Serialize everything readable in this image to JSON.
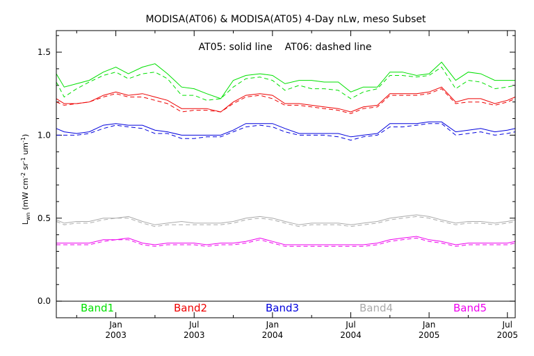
{
  "chart_data": {
    "type": "line",
    "title": "MODISA(AT06) & MODISA(AT05) 4-Day nLw, meso Subset",
    "annotation": "AT05: solid line    AT06: dashed line",
    "ylabel": {
      "base": "L",
      "sub": "wn",
      "units_open": "  (mW cm",
      "exp1": "-2",
      "mid": " sr",
      "exp2": "-1",
      "um": " um",
      "exp3": "-1",
      "close": ")"
    },
    "ylim": [
      -0.1,
      1.63
    ],
    "xlim": [
      2002.62,
      2005.55
    ],
    "y_ticks": [
      0.0,
      0.5,
      1.0,
      1.5
    ],
    "y_tick_labels": [
      "0.0",
      "0.5",
      "1.0",
      "1.5"
    ],
    "x_ticks": [
      {
        "x": 2003.0,
        "month": "Jan",
        "year": "2003"
      },
      {
        "x": 2003.5,
        "month": "Jul",
        "year": "2003"
      },
      {
        "x": 2004.0,
        "month": "Jan",
        "year": "2004"
      },
      {
        "x": 2004.5,
        "month": "Jul",
        "year": "2004"
      },
      {
        "x": 2005.0,
        "month": "Jan",
        "year": "2005"
      },
      {
        "x": 2005.5,
        "month": "Jul",
        "year": "2005"
      }
    ],
    "zero_line": 0.0,
    "legend_placement": "bottom",
    "x": [
      2002.62,
      2002.67,
      2002.75,
      2002.83,
      2002.92,
      2003.0,
      2003.08,
      2003.17,
      2003.25,
      2003.33,
      2003.42,
      2003.5,
      2003.58,
      2003.67,
      2003.75,
      2003.83,
      2003.92,
      2004.0,
      2004.08,
      2004.17,
      2004.25,
      2004.33,
      2004.42,
      2004.5,
      2004.58,
      2004.67,
      2004.75,
      2004.83,
      2004.92,
      2005.0,
      2005.08,
      2005.17,
      2005.25,
      2005.33,
      2005.42,
      2005.5,
      2005.55
    ],
    "series": [
      {
        "name": "Band1",
        "color": "#00e000",
        "solid": [
          1.37,
          1.29,
          1.31,
          1.33,
          1.38,
          1.41,
          1.37,
          1.41,
          1.43,
          1.37,
          1.29,
          1.28,
          1.25,
          1.22,
          1.33,
          1.36,
          1.37,
          1.36,
          1.31,
          1.33,
          1.33,
          1.32,
          1.32,
          1.26,
          1.29,
          1.29,
          1.38,
          1.38,
          1.36,
          1.37,
          1.44,
          1.33,
          1.38,
          1.37,
          1.33,
          1.33,
          1.33
        ],
        "dashed": [
          1.32,
          1.23,
          1.28,
          1.32,
          1.36,
          1.38,
          1.34,
          1.37,
          1.38,
          1.34,
          1.24,
          1.24,
          1.21,
          1.22,
          1.29,
          1.34,
          1.35,
          1.33,
          1.27,
          1.3,
          1.28,
          1.28,
          1.27,
          1.22,
          1.26,
          1.28,
          1.36,
          1.36,
          1.35,
          1.36,
          1.41,
          1.28,
          1.33,
          1.32,
          1.28,
          1.29,
          1.3
        ]
      },
      {
        "name": "Band2",
        "color": "#ee0000",
        "solid": [
          1.22,
          1.19,
          1.19,
          1.2,
          1.24,
          1.26,
          1.24,
          1.25,
          1.23,
          1.21,
          1.16,
          1.16,
          1.16,
          1.14,
          1.2,
          1.24,
          1.25,
          1.24,
          1.19,
          1.19,
          1.18,
          1.17,
          1.16,
          1.14,
          1.17,
          1.18,
          1.25,
          1.25,
          1.25,
          1.26,
          1.29,
          1.2,
          1.22,
          1.22,
          1.19,
          1.21,
          1.23
        ],
        "dashed": [
          1.2,
          1.18,
          1.19,
          1.2,
          1.23,
          1.25,
          1.23,
          1.23,
          1.21,
          1.19,
          1.14,
          1.15,
          1.15,
          1.14,
          1.19,
          1.23,
          1.24,
          1.22,
          1.18,
          1.18,
          1.17,
          1.16,
          1.15,
          1.13,
          1.16,
          1.17,
          1.24,
          1.24,
          1.24,
          1.25,
          1.28,
          1.19,
          1.2,
          1.2,
          1.18,
          1.2,
          1.22
        ]
      },
      {
        "name": "Band3",
        "color": "#0000dd",
        "solid": [
          1.04,
          1.02,
          1.01,
          1.02,
          1.06,
          1.07,
          1.06,
          1.06,
          1.03,
          1.02,
          1.0,
          1.0,
          1.0,
          1.0,
          1.03,
          1.07,
          1.07,
          1.07,
          1.04,
          1.01,
          1.01,
          1.01,
          1.01,
          0.99,
          1.0,
          1.01,
          1.07,
          1.07,
          1.07,
          1.08,
          1.08,
          1.02,
          1.03,
          1.04,
          1.02,
          1.03,
          1.04
        ],
        "dashed": [
          1.0,
          1.0,
          1.0,
          1.01,
          1.04,
          1.06,
          1.05,
          1.04,
          1.01,
          1.01,
          0.98,
          0.98,
          0.99,
          0.99,
          1.02,
          1.05,
          1.06,
          1.05,
          1.02,
          1.0,
          1.0,
          1.0,
          0.99,
          0.97,
          0.99,
          1.0,
          1.05,
          1.05,
          1.06,
          1.07,
          1.07,
          1.0,
          1.01,
          1.02,
          1.0,
          1.01,
          1.02
        ]
      },
      {
        "name": "Band4",
        "color": "#aaaaaa",
        "solid": [
          0.49,
          0.47,
          0.48,
          0.48,
          0.5,
          0.5,
          0.51,
          0.48,
          0.46,
          0.47,
          0.48,
          0.47,
          0.47,
          0.47,
          0.48,
          0.5,
          0.51,
          0.5,
          0.48,
          0.46,
          0.47,
          0.47,
          0.47,
          0.46,
          0.47,
          0.48,
          0.5,
          0.51,
          0.52,
          0.51,
          0.49,
          0.47,
          0.48,
          0.48,
          0.47,
          0.48,
          0.49
        ],
        "dashed": [
          0.48,
          0.46,
          0.47,
          0.47,
          0.49,
          0.5,
          0.5,
          0.47,
          0.45,
          0.46,
          0.46,
          0.46,
          0.46,
          0.46,
          0.47,
          0.49,
          0.5,
          0.49,
          0.47,
          0.45,
          0.46,
          0.46,
          0.46,
          0.45,
          0.46,
          0.47,
          0.49,
          0.5,
          0.51,
          0.5,
          0.48,
          0.46,
          0.47,
          0.47,
          0.46,
          0.47,
          0.48
        ]
      },
      {
        "name": "Band5",
        "color": "#ee00ee",
        "solid": [
          0.35,
          0.35,
          0.35,
          0.35,
          0.37,
          0.37,
          0.38,
          0.35,
          0.34,
          0.35,
          0.35,
          0.35,
          0.34,
          0.35,
          0.35,
          0.36,
          0.38,
          0.36,
          0.34,
          0.34,
          0.34,
          0.34,
          0.34,
          0.34,
          0.34,
          0.35,
          0.37,
          0.38,
          0.39,
          0.37,
          0.36,
          0.34,
          0.35,
          0.35,
          0.35,
          0.35,
          0.36
        ],
        "dashed": [
          0.34,
          0.34,
          0.34,
          0.34,
          0.36,
          0.37,
          0.37,
          0.34,
          0.33,
          0.34,
          0.34,
          0.34,
          0.33,
          0.34,
          0.34,
          0.35,
          0.37,
          0.35,
          0.33,
          0.33,
          0.33,
          0.33,
          0.33,
          0.33,
          0.33,
          0.34,
          0.36,
          0.37,
          0.38,
          0.36,
          0.35,
          0.33,
          0.34,
          0.34,
          0.34,
          0.34,
          0.35
        ]
      }
    ]
  }
}
